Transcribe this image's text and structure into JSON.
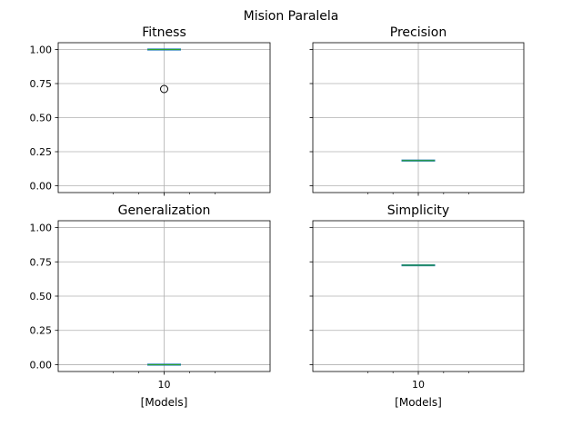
{
  "suptitle": "Mision Paralela",
  "chart_data": [
    {
      "type": "box",
      "title": "Fitness",
      "categories": [
        "10"
      ],
      "xlabel": "",
      "ylim": [
        -0.05,
        1.05
      ],
      "yticks": [
        "0.00",
        "0.25",
        "0.50",
        "0.75",
        "1.00"
      ],
      "grid": true,
      "boxes": [
        {
          "category": "10",
          "min": 1.0,
          "q1": 1.0,
          "median": 1.0,
          "q3": 1.0,
          "max": 1.0,
          "outliers": [
            0.71
          ]
        }
      ]
    },
    {
      "type": "box",
      "title": "Precision",
      "categories": [
        "10"
      ],
      "xlabel": "",
      "ylim": [
        -0.05,
        1.05
      ],
      "yticks": [
        "0.00",
        "0.25",
        "0.50",
        "0.75",
        "1.00"
      ],
      "grid": true,
      "boxes": [
        {
          "category": "10",
          "min": 0.185,
          "q1": 0.185,
          "median": 0.185,
          "q3": 0.185,
          "max": 0.185,
          "outliers": []
        }
      ]
    },
    {
      "type": "box",
      "title": "Generalization",
      "categories": [
        "10"
      ],
      "xlabel": "[Models]",
      "ylim": [
        -0.05,
        1.05
      ],
      "yticks": [
        "0.00",
        "0.25",
        "0.50",
        "0.75",
        "1.00"
      ],
      "grid": true,
      "boxes": [
        {
          "category": "10",
          "min": 0.0,
          "q1": 0.0,
          "median": 0.0,
          "q3": 0.0,
          "max": 0.0,
          "outliers": []
        }
      ]
    },
    {
      "type": "box",
      "title": "Simplicity",
      "categories": [
        "10"
      ],
      "xlabel": "[Models]",
      "ylim": [
        -0.05,
        1.05
      ],
      "yticks": [
        "0.00",
        "0.25",
        "0.50",
        "0.75",
        "1.00"
      ],
      "grid": true,
      "boxes": [
        {
          "category": "10",
          "min": 0.725,
          "q1": 0.725,
          "median": 0.725,
          "q3": 0.725,
          "max": 0.725,
          "outliers": []
        }
      ]
    }
  ],
  "colors": {
    "box": "#1f77b4",
    "median": "#2ca02c",
    "grid": "#b0b0b0"
  }
}
